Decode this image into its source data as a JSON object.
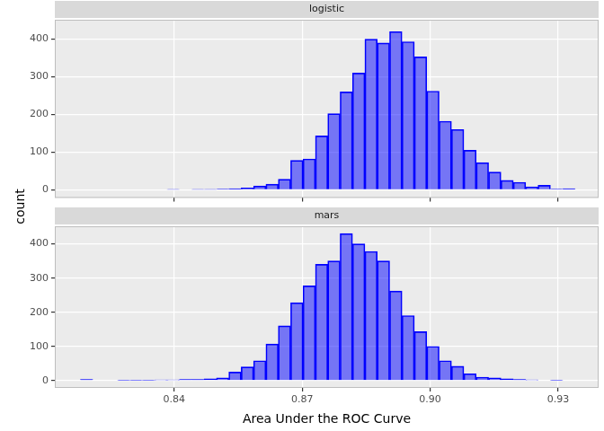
{
  "chart_data": [
    {
      "type": "histogram",
      "title": "logistic",
      "y_label": "count",
      "bins": [
        0.818,
        0.8209,
        0.8238,
        0.8267,
        0.8296,
        0.8325,
        0.8354,
        0.8383,
        0.8412,
        0.8441,
        0.847,
        0.8499,
        0.8528,
        0.8557,
        0.8586,
        0.8615,
        0.8644,
        0.8673,
        0.8702,
        0.8731,
        0.876,
        0.8789,
        0.8818,
        0.8847,
        0.8876,
        0.8905,
        0.8934,
        0.8963,
        0.8992,
        0.9021,
        0.905,
        0.9079,
        0.9108,
        0.9137,
        0.9166,
        0.9195,
        0.9224,
        0.9253,
        0.9282,
        0.9311,
        0.934
      ],
      "values": [
        0,
        0,
        0,
        0,
        0,
        0,
        0,
        1,
        0,
        1,
        1,
        2,
        3,
        5,
        10,
        15,
        28,
        78,
        82,
        143,
        202,
        260,
        310,
        400,
        390,
        420,
        393,
        353,
        262,
        182,
        160,
        105,
        72,
        47,
        25,
        20,
        8,
        12,
        2,
        3
      ],
      "color": "#0000ff",
      "xlim": [
        0.812,
        0.9395
      ],
      "xticks": [
        0.84,
        0.87,
        {
          "value": 0.9,
          "label": "0.90"
        },
        0.93
      ],
      "ylim": [
        -21.5,
        451.5
      ],
      "yticks": [
        0,
        100,
        200,
        300,
        400
      ],
      "grid": true,
      "tick_labels": "y"
    },
    {
      "type": "histogram",
      "title": "mars",
      "x_label": "Area Under the ROC Curve",
      "bins": [
        0.818,
        0.8209,
        0.8238,
        0.8267,
        0.8296,
        0.8325,
        0.8354,
        0.8383,
        0.8412,
        0.8441,
        0.847,
        0.8499,
        0.8528,
        0.8557,
        0.8586,
        0.8615,
        0.8644,
        0.8673,
        0.8702,
        0.8731,
        0.876,
        0.8789,
        0.8818,
        0.8847,
        0.8876,
        0.8905,
        0.8934,
        0.8963,
        0.8992,
        0.9021,
        0.905,
        0.9079,
        0.9108,
        0.9137,
        0.9166,
        0.9195,
        0.9224,
        0.9253,
        0.9282,
        0.9311,
        0.934
      ],
      "values": [
        3,
        0,
        0,
        1,
        1,
        1,
        2,
        2,
        3,
        3,
        5,
        8,
        25,
        40,
        58,
        107,
        160,
        228,
        277,
        340,
        350,
        430,
        400,
        378,
        350,
        262,
        190,
        143,
        100,
        58,
        42,
        20,
        10,
        8,
        5,
        3,
        2,
        0,
        1,
        0
      ],
      "color": "#0000ff",
      "xlim": [
        0.812,
        0.9395
      ],
      "xticks": [
        0.84,
        0.87,
        {
          "value": 0.9,
          "label": "0.90"
        },
        0.93
      ],
      "ylim": [
        -21.5,
        451.5
      ],
      "yticks": [
        0,
        100,
        200,
        300,
        400
      ],
      "grid": true
    }
  ]
}
